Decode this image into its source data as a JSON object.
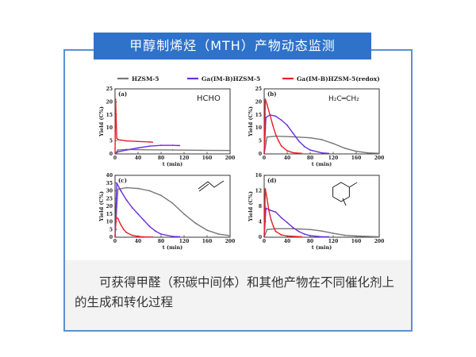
{
  "header": {
    "title": "甲醇制烯烃（MTH）产物动态监测"
  },
  "caption": {
    "text": "可获得甲醛（积碳中间体）和其他产物在不同催化剂上的生成和转化过程"
  },
  "colors": {
    "frame": "#5b8fd6",
    "title_bg": "#2f72c9",
    "hzsm5": "#777777",
    "gaimb": "#6a2fe0",
    "redox": "#e8202a"
  },
  "legend": [
    {
      "label": "HZSM-5",
      "color": "#777777"
    },
    {
      "label": "Ga(IM-B)HZSM-5",
      "color": "#6a2fe0"
    },
    {
      "label": "Ga(IM-B)HZSM-5(redox)",
      "color": "#e8202a"
    }
  ],
  "chart_data": [
    {
      "type": "line",
      "panel": "(a)",
      "product_label": "HCHO",
      "xlabel": "t (min)",
      "ylabel": "Yield (C%)",
      "xlim": [
        0,
        200
      ],
      "ylim": [
        0,
        25
      ],
      "xticks": [
        0,
        40,
        80,
        120,
        160,
        200
      ],
      "yticks": [
        0,
        5,
        10,
        15,
        20,
        25
      ],
      "series": [
        {
          "name": "HZSM-5",
          "x": [
            0,
            5,
            20,
            50,
            100,
            150,
            200
          ],
          "y": [
            0,
            1.5,
            1.7,
            1.6,
            1.5,
            1.4,
            1.3
          ]
        },
        {
          "name": "Ga(IM-B)HZSM-5",
          "x": [
            0,
            5,
            20,
            40,
            60,
            80,
            100,
            112
          ],
          "y": [
            0,
            0.8,
            1.5,
            2.3,
            3.0,
            3.3,
            3.3,
            3.2
          ]
        },
        {
          "name": "Ga(IM-B)HZSM-5(redox)",
          "x": [
            0,
            1,
            3,
            5,
            10,
            20,
            40,
            60,
            65
          ],
          "y": [
            0,
            21,
            6,
            5.5,
            5.3,
            5.0,
            4.8,
            4.6,
            4.5
          ]
        }
      ]
    },
    {
      "type": "line",
      "panel": "(b)",
      "product_label": "H₂C═CH₂",
      "xlabel": "t (min)",
      "ylabel": "Yield (C%)",
      "xlim": [
        0,
        200
      ],
      "ylim": [
        0,
        25
      ],
      "xticks": [
        0,
        40,
        80,
        120,
        160,
        200
      ],
      "yticks": [
        0,
        5,
        10,
        15,
        20,
        25
      ],
      "series": [
        {
          "name": "HZSM-5",
          "x": [
            0,
            5,
            20,
            50,
            80,
            100,
            120,
            140,
            160,
            180,
            200
          ],
          "y": [
            0,
            6.5,
            6.8,
            6.6,
            6.2,
            5.5,
            4.0,
            2.2,
            1.0,
            0.4,
            0.2
          ]
        },
        {
          "name": "Ga(IM-B)HZSM-5",
          "x": [
            0,
            3,
            10,
            20,
            30,
            40,
            50,
            60,
            70,
            80,
            100,
            112
          ],
          "y": [
            0,
            14,
            15,
            14.5,
            13,
            11,
            8,
            5,
            2.8,
            1.5,
            0.4,
            0.2
          ]
        },
        {
          "name": "Ga(IM-B)HZSM-5(redox)",
          "x": [
            0,
            2,
            5,
            10,
            15,
            20,
            25,
            30,
            40,
            50,
            65
          ],
          "y": [
            0,
            21,
            19,
            15,
            11,
            7.5,
            5,
            3,
            1.2,
            0.5,
            0.2
          ]
        }
      ]
    },
    {
      "type": "line",
      "panel": "(c)",
      "xlabel": "t (min)",
      "ylabel": "Yield (C%)",
      "xlim": [
        0,
        200
      ],
      "ylim": [
        0,
        40
      ],
      "xticks": [
        0,
        40,
        80,
        120,
        160,
        200
      ],
      "yticks": [
        0,
        5,
        10,
        15,
        20,
        25,
        30,
        35,
        40
      ],
      "series": [
        {
          "name": "HZSM-5",
          "x": [
            0,
            5,
            20,
            40,
            60,
            80,
            100,
            120,
            140,
            160,
            180,
            200
          ],
          "y": [
            0,
            31,
            32,
            31.5,
            30,
            27,
            22,
            15,
            9,
            4.5,
            2,
            1
          ]
        },
        {
          "name": "Ga(IM-B)HZSM-5",
          "x": [
            0,
            3,
            10,
            20,
            30,
            40,
            50,
            60,
            70,
            80,
            100,
            112
          ],
          "y": [
            0,
            35,
            30,
            24,
            19,
            15,
            11,
            7,
            4,
            2,
            0.5,
            0.3
          ]
        },
        {
          "name": "Ga(IM-B)HZSM-5(redox)",
          "x": [
            0,
            2,
            5,
            10,
            15,
            20,
            30,
            40,
            50,
            65
          ],
          "y": [
            0,
            13,
            12,
            8,
            5,
            3,
            1.2,
            0.5,
            0.2,
            0.1
          ]
        }
      ]
    },
    {
      "type": "line",
      "panel": "(d)",
      "xlabel": "t (min)",
      "ylabel": "Yield (C%)",
      "xlim": [
        0,
        200
      ],
      "ylim": [
        0,
        16
      ],
      "xticks": [
        0,
        40,
        80,
        120,
        160,
        200
      ],
      "yticks": [
        0,
        4,
        8,
        12,
        16
      ],
      "series": [
        {
          "name": "HZSM-5",
          "x": [
            0,
            5,
            20,
            50,
            80,
            100,
            120,
            140,
            160,
            180,
            200
          ],
          "y": [
            0,
            2.0,
            2.2,
            2.2,
            2.0,
            1.6,
            1.0,
            0.5,
            0.3,
            0.2,
            0.1
          ]
        },
        {
          "name": "Ga(IM-B)HZSM-5",
          "x": [
            0,
            3,
            10,
            20,
            30,
            40,
            50,
            60,
            70,
            80,
            100,
            112
          ],
          "y": [
            0,
            7.5,
            7,
            6.5,
            5,
            3.8,
            2.5,
            1.5,
            0.8,
            0.4,
            0.1,
            0.1
          ]
        },
        {
          "name": "Ga(IM-B)HZSM-5(redox)",
          "x": [
            0,
            2,
            5,
            8,
            12,
            16,
            20,
            30,
            40,
            65
          ],
          "y": [
            0,
            12.5,
            10,
            7,
            4.5,
            2.8,
            1.5,
            0.6,
            0.3,
            0.1
          ]
        }
      ]
    }
  ]
}
